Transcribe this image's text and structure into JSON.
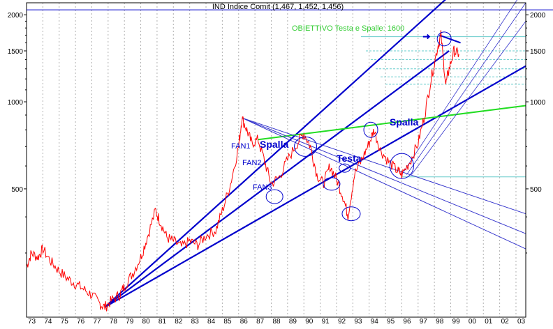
{
  "chart_data": {
    "type": "line",
    "title": "IND Indice Comit (1,467, 1,452, 1,456)",
    "y_scale": "log",
    "ylim": [
      180,
      2200
    ],
    "y_ticks": [
      500,
      1000,
      1500,
      2000
    ],
    "y_tick_labels": [
      "500",
      "1000",
      "1500",
      "2000"
    ],
    "x_tick_labels": [
      "73",
      "74",
      "75",
      "76",
      "77",
      "78",
      "79",
      "80",
      "81",
      "82",
      "83",
      "84",
      "85",
      "86",
      "87",
      "88",
      "89",
      "90",
      "91",
      "92",
      "93",
      "94",
      "95",
      "96",
      "97",
      "98",
      "99",
      "00",
      "01",
      "02",
      "03"
    ],
    "xlim": [
      1973,
      2003.6
    ],
    "price_series": {
      "name": "",
      "color": "#ff0000",
      "points": [
        [
          1973.0,
          270
        ],
        [
          1973.3,
          300
        ],
        [
          1973.7,
          290
        ],
        [
          1974.0,
          310
        ],
        [
          1974.5,
          280
        ],
        [
          1975.0,
          260
        ],
        [
          1975.5,
          245
        ],
        [
          1976.0,
          235
        ],
        [
          1976.5,
          225
        ],
        [
          1977.0,
          215
        ],
        [
          1977.5,
          200
        ],
        [
          1977.8,
          195
        ],
        [
          1978.2,
          205
        ],
        [
          1978.7,
          215
        ],
        [
          1979.0,
          230
        ],
        [
          1979.5,
          255
        ],
        [
          1980.0,
          290
        ],
        [
          1980.4,
          340
        ],
        [
          1980.9,
          420
        ],
        [
          1981.2,
          385
        ],
        [
          1981.6,
          340
        ],
        [
          1982.0,
          330
        ],
        [
          1982.5,
          315
        ],
        [
          1983.0,
          330
        ],
        [
          1983.5,
          320
        ],
        [
          1984.0,
          345
        ],
        [
          1984.6,
          360
        ],
        [
          1985.0,
          420
        ],
        [
          1985.5,
          520
        ],
        [
          1986.0,
          700
        ],
        [
          1986.2,
          880
        ],
        [
          1986.5,
          800
        ],
        [
          1986.8,
          720
        ],
        [
          1987.2,
          740
        ],
        [
          1987.6,
          620
        ],
        [
          1988.0,
          520
        ],
        [
          1988.5,
          550
        ],
        [
          1989.0,
          630
        ],
        [
          1989.6,
          720
        ],
        [
          1990.0,
          780
        ],
        [
          1990.4,
          700
        ],
        [
          1990.8,
          560
        ],
        [
          1991.2,
          520
        ],
        [
          1991.6,
          600
        ],
        [
          1992.0,
          540
        ],
        [
          1992.4,
          470
        ],
        [
          1992.7,
          405
        ],
        [
          1993.1,
          560
        ],
        [
          1993.6,
          640
        ],
        [
          1994.0,
          720
        ],
        [
          1994.3,
          800
        ],
        [
          1994.7,
          680
        ],
        [
          1995.2,
          620
        ],
        [
          1995.7,
          580
        ],
        [
          1996.0,
          560
        ],
        [
          1996.5,
          620
        ],
        [
          1997.0,
          720
        ],
        [
          1997.4,
          900
        ],
        [
          1997.8,
          1200
        ],
        [
          1998.2,
          1550
        ],
        [
          1998.4,
          1700
        ],
        [
          1998.7,
          1150
        ],
        [
          1998.9,
          1300
        ],
        [
          1999.2,
          1500
        ],
        [
          1999.5,
          1460
        ]
      ]
    },
    "trendlines": [
      {
        "label": "FAN1",
        "color": "#0000cc",
        "from": [
          1977.8,
          195
        ],
        "to": [
          1999.2,
          2400
        ]
      },
      {
        "label": "FAN2",
        "color": "#0000cc",
        "from": [
          1977.8,
          195
        ],
        "to": [
          1998.9,
          1500
        ]
      },
      {
        "label": "FAN3",
        "color": "#0000cc",
        "from": [
          1977.8,
          195
        ],
        "to": [
          2003.6,
          1330
        ]
      },
      {
        "label": "",
        "color": "#22dd22",
        "from": [
          1987.2,
          740
        ],
        "to": [
          2003.6,
          970
        ]
      },
      {
        "label": "",
        "color": "#3333cc",
        "from": [
          1986.2,
          880
        ],
        "to": [
          2003.6,
          410
        ]
      },
      {
        "label": "",
        "color": "#3333cc",
        "from": [
          1986.2,
          880
        ],
        "to": [
          2003.6,
          350
        ]
      },
      {
        "label": "",
        "color": "#3333cc",
        "from": [
          1986.2,
          880
        ],
        "to": [
          2003.6,
          310
        ]
      }
    ],
    "annotations": {
      "objective": "OBIETTIVO Testa e Spalle: 1600",
      "head": "Testa",
      "shoulder_left": "Spalla",
      "shoulder_right": "Spalla",
      "fan1": "FAN1",
      "fan2": "FAN2",
      "fan3": "FAN3"
    },
    "grid": true,
    "legend": "none"
  },
  "colors": {
    "price": "#ff0000",
    "fan": "#0000cc",
    "green_line": "#22dd22",
    "objective_text": "#33cc33",
    "cyan_levels": "#66cccc"
  }
}
